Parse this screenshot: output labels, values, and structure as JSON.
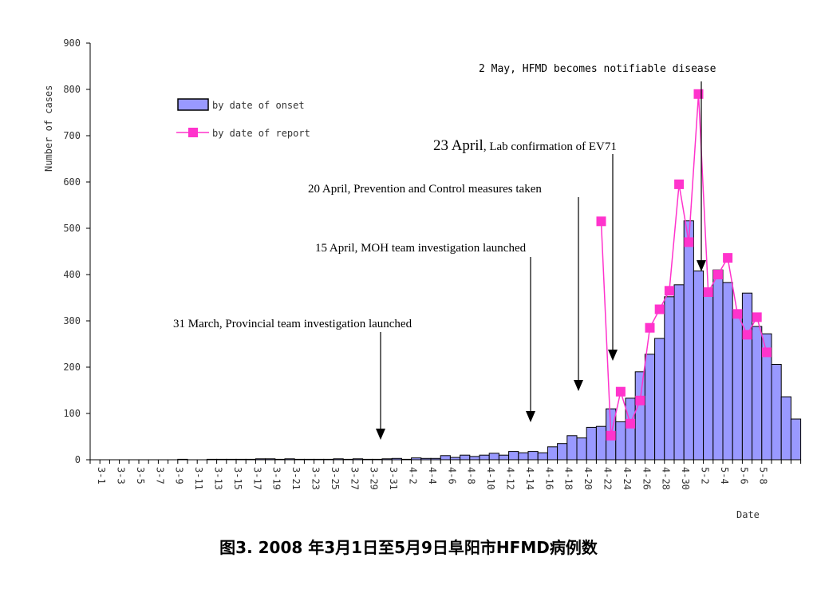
{
  "chart_data": {
    "type": "bar+line",
    "ylabel": "Number of cases",
    "xlabel": "Date",
    "ylim": [
      0,
      900
    ],
    "yticks": [
      0,
      100,
      200,
      300,
      400,
      500,
      600,
      700,
      800,
      900
    ],
    "xtick_labels": [
      "3-1",
      "3-3",
      "3-5",
      "3-7",
      "3-9",
      "3-11",
      "3-13",
      "3-15",
      "3-17",
      "3-19",
      "3-21",
      "3-23",
      "3-25",
      "3-27",
      "3-29",
      "3-31",
      "4-2",
      "4-4",
      "4-6",
      "4-8",
      "4-10",
      "4-12",
      "4-14",
      "4-16",
      "4-18",
      "4-20",
      "4-22",
      "4-24",
      "4-26",
      "4-28",
      "4-30",
      "5-2",
      "5-4",
      "5-6",
      "5-8"
    ],
    "series": [
      {
        "name": "by date of onset",
        "kind": "bar",
        "color": "#9999ff",
        "values": [
          0,
          0,
          0,
          0,
          0,
          0,
          0,
          0,
          0,
          1,
          0,
          0,
          1,
          1,
          1,
          1,
          1,
          2,
          2,
          1,
          2,
          1,
          1,
          1,
          1,
          2,
          1,
          2,
          1,
          1,
          2,
          3,
          1,
          4,
          3,
          3,
          9,
          5,
          10,
          7,
          10,
          14,
          10,
          18,
          15,
          18,
          15,
          28,
          35,
          52,
          47,
          70,
          72,
          110,
          82,
          133,
          190,
          228,
          262,
          352,
          378,
          516,
          408,
          365,
          410,
          383,
          322,
          360,
          288,
          272,
          206,
          136,
          88
        ],
        "start_label": "3-1"
      },
      {
        "name": "by date of report",
        "kind": "line",
        "color": "#ff33cc",
        "start_label": "4-22",
        "values": [
          515,
          52,
          147,
          78,
          128,
          285,
          325,
          365,
          595,
          470,
          790,
          362,
          400,
          436,
          315,
          270,
          308,
          232
        ]
      }
    ],
    "legend_position": "top-left"
  },
  "annotations": {
    "a1": "2 May, HFMD becomes notifiable disease",
    "a2_big": "23 April",
    "a2_rest": ", Lab confirmation of EV71",
    "a3": "20 April, Prevention and Control measures taken",
    "a4": "15 April, MOH team investigation launched",
    "a5": "31 March, Provincial team investigation launched"
  },
  "caption": "图3. 2008 年3月1日至5月9日阜阳市HFMD病例数"
}
